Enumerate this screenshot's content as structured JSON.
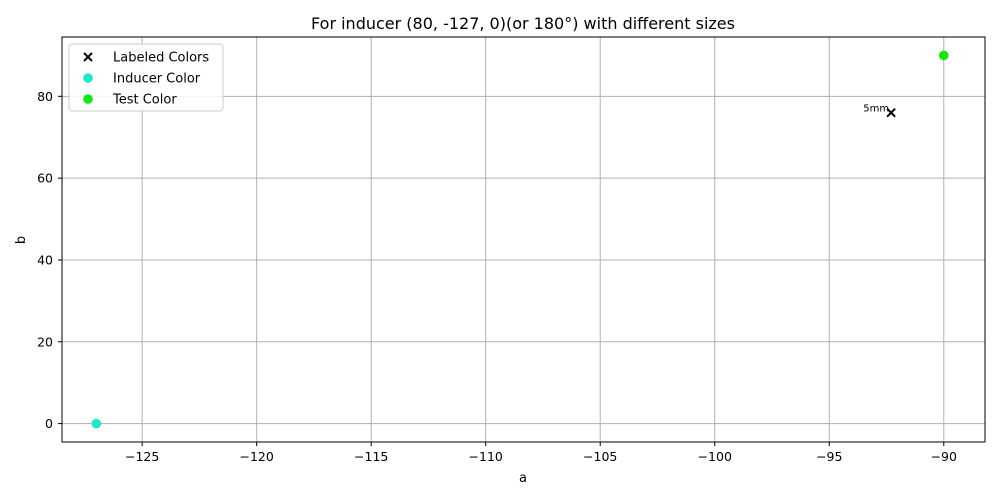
{
  "chart_data": {
    "type": "scatter",
    "title": "For inducer (80, -127, 0)(or 180°) with different sizes",
    "xlabel": "a",
    "ylabel": "b",
    "xlim": [
      -128.5,
      -88.2
    ],
    "ylim": [
      -4.5,
      94.5
    ],
    "xticks": [
      -125,
      -120,
      -115,
      -110,
      -105,
      -100,
      -95,
      -90
    ],
    "yticks": [
      0,
      20,
      40,
      60,
      80
    ],
    "grid": true,
    "legend_position": "top-left",
    "series": [
      {
        "name": "Labeled Colors",
        "marker": "x",
        "color": "#000000",
        "points": [
          {
            "x": -92.3,
            "y": 76,
            "label": "5mm"
          }
        ]
      },
      {
        "name": "Inducer Color",
        "marker": "circle",
        "color": "#1de9c8",
        "points": [
          {
            "x": -127,
            "y": 0
          }
        ]
      },
      {
        "name": "Test Color",
        "marker": "circle",
        "color": "#14e614",
        "points": [
          {
            "x": -90,
            "y": 90
          }
        ]
      }
    ]
  }
}
